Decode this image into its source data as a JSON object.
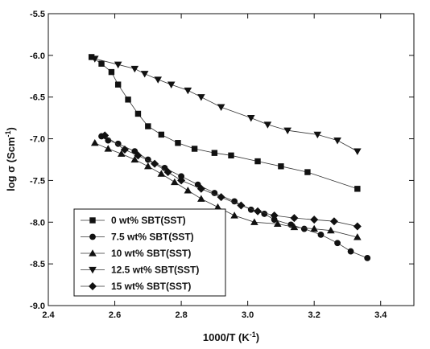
{
  "chart_data": {
    "type": "line",
    "xlabel_main": "1000/T (K",
    "xlabel_sup": "-1",
    "xlabel_end": ")",
    "ylabel_main": "log σ (Scm",
    "ylabel_sup": "-1",
    "ylabel_end": ")",
    "xlim": [
      2.4,
      3.5
    ],
    "ylim": [
      -9.0,
      -5.5
    ],
    "xticks": [
      2.4,
      2.6,
      2.8,
      3.0,
      3.2,
      3.4
    ],
    "xtick_labels": [
      "2.4",
      "2.6",
      "2.8",
      "3.0",
      "3.2",
      "3.4"
    ],
    "yticks": [
      -9.0,
      -8.5,
      -8.0,
      -7.5,
      -7.0,
      -6.5,
      -6.0,
      -5.5
    ],
    "ytick_labels": [
      "-9.0",
      "-8.5",
      "-8.0",
      "-7.5",
      "-7.0",
      "-6.5",
      "-6.0",
      "-5.5"
    ],
    "grid": false,
    "legend_position": "bottom-left",
    "series": [
      {
        "name": "0 wt% SBT(SST)",
        "marker": "square",
        "x": [
          2.53,
          2.56,
          2.59,
          2.61,
          2.64,
          2.67,
          2.7,
          2.74,
          2.79,
          2.84,
          2.9,
          2.95,
          3.03,
          3.1,
          3.18,
          3.33
        ],
        "y": [
          -6.02,
          -6.1,
          -6.2,
          -6.35,
          -6.53,
          -6.7,
          -6.85,
          -6.95,
          -7.05,
          -7.12,
          -7.17,
          -7.2,
          -7.27,
          -7.33,
          -7.4,
          -7.6
        ]
      },
      {
        "name": "7.5 wt% SBT(SST)",
        "marker": "circle",
        "x": [
          2.56,
          2.58,
          2.61,
          2.66,
          2.7,
          2.75,
          2.8,
          2.85,
          2.9,
          2.96,
          3.01,
          3.05,
          3.08,
          3.13,
          3.17,
          3.22,
          3.27,
          3.31,
          3.36
        ],
        "y": [
          -6.97,
          -7.02,
          -7.06,
          -7.15,
          -7.25,
          -7.35,
          -7.45,
          -7.55,
          -7.65,
          -7.75,
          -7.85,
          -7.9,
          -7.97,
          -8.03,
          -8.08,
          -8.15,
          -8.25,
          -8.35,
          -8.43
        ]
      },
      {
        "name": "10 wt% SBT(SST)",
        "marker": "triangle-up",
        "x": [
          2.54,
          2.58,
          2.62,
          2.66,
          2.7,
          2.74,
          2.78,
          2.82,
          2.86,
          2.91,
          2.96,
          3.02,
          3.09,
          3.14,
          3.2,
          3.25,
          3.33
        ],
        "y": [
          -7.05,
          -7.12,
          -7.18,
          -7.25,
          -7.33,
          -7.42,
          -7.52,
          -7.62,
          -7.72,
          -7.82,
          -7.92,
          -8.0,
          -8.02,
          -8.06,
          -8.08,
          -8.1,
          -8.18
        ]
      },
      {
        "name": "12.5 wt% SBT(SST)",
        "marker": "triangle-down",
        "x": [
          2.54,
          2.61,
          2.66,
          2.69,
          2.73,
          2.77,
          2.82,
          2.86,
          2.92,
          3.01,
          3.06,
          3.12,
          3.21,
          3.27,
          3.33
        ],
        "y": [
          -6.04,
          -6.11,
          -6.16,
          -6.22,
          -6.29,
          -6.35,
          -6.42,
          -6.5,
          -6.62,
          -6.75,
          -6.83,
          -6.9,
          -6.95,
          -7.02,
          -7.15
        ]
      },
      {
        "name": "15 wt% SBT(SST)",
        "marker": "diamond",
        "x": [
          2.57,
          2.63,
          2.67,
          2.72,
          2.76,
          2.8,
          2.86,
          2.92,
          2.98,
          3.03,
          3.08,
          3.14,
          3.2,
          3.26,
          3.33
        ],
        "y": [
          -6.96,
          -7.13,
          -7.2,
          -7.3,
          -7.4,
          -7.5,
          -7.6,
          -7.7,
          -7.8,
          -7.87,
          -7.92,
          -7.95,
          -7.97,
          -7.99,
          -8.05
        ]
      }
    ]
  }
}
